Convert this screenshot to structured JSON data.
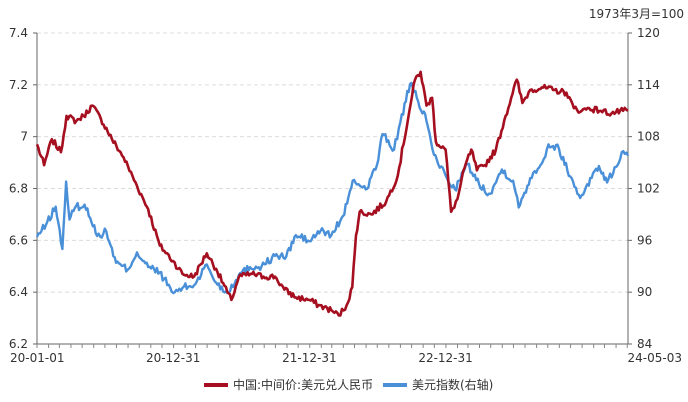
{
  "chart_data": {
    "type": "line",
    "unit_note": "1973年3月=100",
    "grid": true,
    "legend_position": "bottom",
    "x_range": [
      "2020-01-01",
      "2024-05-03"
    ],
    "x_tick_labels": [
      "20-01-01",
      "20-12-31",
      "21-12-31",
      "22-12-31",
      "24-05-03"
    ],
    "y_left": {
      "range": [
        6.2,
        7.4
      ],
      "ticks": [
        6.2,
        6.4,
        6.6,
        6.8,
        7,
        7.2,
        7.4
      ]
    },
    "y_right": {
      "range": [
        84,
        120
      ],
      "ticks": [
        84,
        90,
        96,
        102,
        108,
        114,
        120
      ]
    },
    "series": [
      {
        "name": "中国:中间价:美元兑人民币",
        "axis": "left",
        "color": "#a50f1f",
        "points": [
          [
            "2020-01-01",
            6.97
          ],
          [
            "2020-01-20",
            6.89
          ],
          [
            "2020-02-10",
            6.99
          ],
          [
            "2020-03-05",
            6.94
          ],
          [
            "2020-03-20",
            7.08
          ],
          [
            "2020-04-15",
            7.06
          ],
          [
            "2020-05-05",
            7.08
          ],
          [
            "2020-05-28",
            7.12
          ],
          [
            "2020-06-20",
            7.07
          ],
          [
            "2020-07-20",
            6.99
          ],
          [
            "2020-08-20",
            6.92
          ],
          [
            "2020-09-25",
            6.81
          ],
          [
            "2020-10-25",
            6.72
          ],
          [
            "2020-11-25",
            6.58
          ],
          [
            "2020-12-31",
            6.52
          ],
          [
            "2021-01-25",
            6.47
          ],
          [
            "2021-02-25",
            6.46
          ],
          [
            "2021-03-31",
            6.55
          ],
          [
            "2021-04-25",
            6.49
          ],
          [
            "2021-05-25",
            6.4
          ],
          [
            "2021-06-05",
            6.37
          ],
          [
            "2021-06-25",
            6.46
          ],
          [
            "2021-07-30",
            6.47
          ],
          [
            "2021-08-30",
            6.46
          ],
          [
            "2021-09-30",
            6.46
          ],
          [
            "2021-10-25",
            6.41
          ],
          [
            "2021-11-25",
            6.38
          ],
          [
            "2021-12-31",
            6.37
          ],
          [
            "2022-01-25",
            6.35
          ],
          [
            "2022-02-28",
            6.33
          ],
          [
            "2022-03-20",
            6.31
          ],
          [
            "2022-04-10",
            6.35
          ],
          [
            "2022-04-25",
            6.42
          ],
          [
            "2022-05-05",
            6.62
          ],
          [
            "2022-05-15",
            6.71
          ],
          [
            "2022-06-15",
            6.7
          ],
          [
            "2022-07-25",
            6.75
          ],
          [
            "2022-08-25",
            6.85
          ],
          [
            "2022-09-25",
            7.1
          ],
          [
            "2022-10-10",
            7.22
          ],
          [
            "2022-10-25",
            7.25
          ],
          [
            "2022-11-10",
            7.12
          ],
          [
            "2022-11-25",
            7.15
          ],
          [
            "2022-12-05",
            6.98
          ],
          [
            "2022-12-31",
            6.95
          ],
          [
            "2023-01-15",
            6.71
          ],
          [
            "2023-02-01",
            6.76
          ],
          [
            "2023-02-20",
            6.88
          ],
          [
            "2023-03-10",
            6.95
          ],
          [
            "2023-03-25",
            6.87
          ],
          [
            "2023-04-15",
            6.89
          ],
          [
            "2023-05-15",
            6.95
          ],
          [
            "2023-06-10",
            7.08
          ],
          [
            "2023-06-25",
            7.15
          ],
          [
            "2023-07-10",
            7.22
          ],
          [
            "2023-07-25",
            7.13
          ],
          [
            "2023-08-15",
            7.18
          ],
          [
            "2023-09-15",
            7.19
          ],
          [
            "2023-10-15",
            7.18
          ],
          [
            "2023-11-20",
            7.17
          ],
          [
            "2023-12-10",
            7.11
          ],
          [
            "2023-12-31",
            7.1
          ],
          [
            "2024-01-20",
            7.11
          ],
          [
            "2024-02-20",
            7.1
          ],
          [
            "2024-03-20",
            7.09
          ],
          [
            "2024-04-20",
            7.1
          ],
          [
            "2024-05-03",
            7.1
          ]
        ]
      },
      {
        "name": "美元指数(右轴)",
        "axis": "right",
        "color": "#4a90d9",
        "points": [
          [
            "2020-01-01",
            96.4
          ],
          [
            "2020-01-25",
            97.8
          ],
          [
            "2020-02-20",
            99.9
          ],
          [
            "2020-03-09",
            95.0
          ],
          [
            "2020-03-19",
            102.8
          ],
          [
            "2020-03-28",
            98.4
          ],
          [
            "2020-04-15",
            100.0
          ],
          [
            "2020-05-15",
            99.7
          ],
          [
            "2020-06-10",
            96.5
          ],
          [
            "2020-07-05",
            97.0
          ],
          [
            "2020-07-31",
            93.4
          ],
          [
            "2020-08-31",
            92.6
          ],
          [
            "2020-09-25",
            94.6
          ],
          [
            "2020-10-25",
            92.9
          ],
          [
            "2020-11-25",
            92.3
          ],
          [
            "2020-12-31",
            89.9
          ],
          [
            "2021-01-25",
            90.5
          ],
          [
            "2021-02-25",
            90.8
          ],
          [
            "2021-03-31",
            93.2
          ],
          [
            "2021-04-25",
            91.1
          ],
          [
            "2021-05-25",
            89.9
          ],
          [
            "2021-06-25",
            92.0
          ],
          [
            "2021-07-25",
            92.9
          ],
          [
            "2021-08-25",
            93.0
          ],
          [
            "2021-09-30",
            94.2
          ],
          [
            "2021-10-30",
            94.1
          ],
          [
            "2021-11-25",
            96.6
          ],
          [
            "2021-12-31",
            95.9
          ],
          [
            "2022-01-30",
            97.1
          ],
          [
            "2022-02-28",
            96.6
          ],
          [
            "2022-03-31",
            98.8
          ],
          [
            "2022-04-30",
            103.0
          ],
          [
            "2022-05-31",
            101.9
          ],
          [
            "2022-06-30",
            104.7
          ],
          [
            "2022-07-15",
            108.3
          ],
          [
            "2022-08-15",
            106.5
          ],
          [
            "2022-09-01",
            109.7
          ],
          [
            "2022-09-27",
            114.1
          ],
          [
            "2022-10-15",
            112.5
          ],
          [
            "2022-11-10",
            109.8
          ],
          [
            "2022-11-30",
            105.9
          ],
          [
            "2022-12-31",
            103.5
          ],
          [
            "2023-01-25",
            101.9
          ],
          [
            "2023-02-28",
            104.8
          ],
          [
            "2023-03-31",
            102.5
          ],
          [
            "2023-04-30",
            101.4
          ],
          [
            "2023-05-31",
            104.2
          ],
          [
            "2023-06-30",
            102.9
          ],
          [
            "2023-07-15",
            99.8
          ],
          [
            "2023-08-15",
            103.2
          ],
          [
            "2023-09-20",
            105.4
          ],
          [
            "2023-10-03",
            107.1
          ],
          [
            "2023-10-31",
            106.6
          ],
          [
            "2023-11-30",
            103.4
          ],
          [
            "2023-12-27",
            100.9
          ],
          [
            "2024-01-15",
            102.5
          ],
          [
            "2024-02-15",
            104.6
          ],
          [
            "2024-03-08",
            102.7
          ],
          [
            "2024-04-01",
            104.5
          ],
          [
            "2024-04-16",
            106.2
          ],
          [
            "2024-05-03",
            105.8
          ]
        ]
      }
    ]
  }
}
